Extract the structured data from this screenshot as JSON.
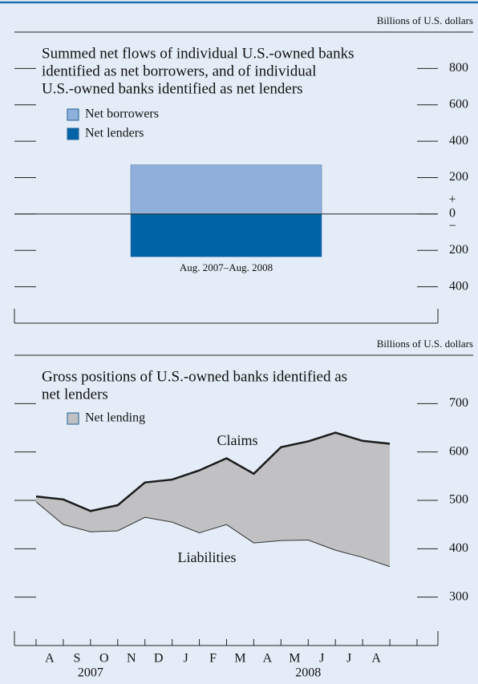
{
  "chart_data": [
    {
      "type": "bar",
      "units": "Billions of U.S. dollars",
      "title": [
        "Summed net flows of individual U.S.-owned banks",
        "identified as net borrowers, and of individual",
        "U.S.-owned banks identified as net lenders"
      ],
      "categories": [
        "Aug. 2007–Aug. 2008"
      ],
      "series": [
        {
          "name": "Net borrowers",
          "color": "#8fb0da",
          "values": [
            270
          ]
        },
        {
          "name": "Net lenders",
          "color": "#0063a6",
          "values": [
            -235
          ]
        }
      ],
      "ylim": [
        -600,
        1000
      ],
      "yticks": [
        {
          "value": -400,
          "label": "400"
        },
        {
          "value": -200,
          "label": "200"
        },
        0,
        200,
        400,
        600,
        800
      ],
      "zero_signs": [
        "+",
        "−"
      ]
    },
    {
      "type": "area",
      "units": "Billions of U.S. dollars",
      "title": [
        "Gross positions of U.S.-owned banks identified as",
        "net lenders"
      ],
      "legend": "Net lending",
      "fill_color": "#c1c1c4",
      "month_labels": [
        "A",
        "S",
        "O",
        "N",
        "D",
        "J",
        "F",
        "M",
        "A",
        "M",
        "J",
        "J",
        "A"
      ],
      "years": [
        {
          "label": "2007",
          "month_index": 2
        },
        {
          "label": "2008",
          "month_index": 10
        }
      ],
      "series": [
        {
          "name": "Claims",
          "color": "#1a1a1a",
          "values": [
            508,
            502,
            478,
            490,
            537,
            543,
            562,
            587,
            555,
            610,
            622,
            640,
            623,
            617
          ]
        },
        {
          "name": "Liabilities",
          "color": "#333333",
          "values": [
            497,
            450,
            435,
            437,
            465,
            455,
            433,
            450,
            412,
            417,
            418,
            397,
            382,
            363
          ]
        }
      ],
      "ylim": [
        200,
        800
      ],
      "yticks": [
        300,
        400,
        500,
        600,
        700
      ]
    }
  ]
}
